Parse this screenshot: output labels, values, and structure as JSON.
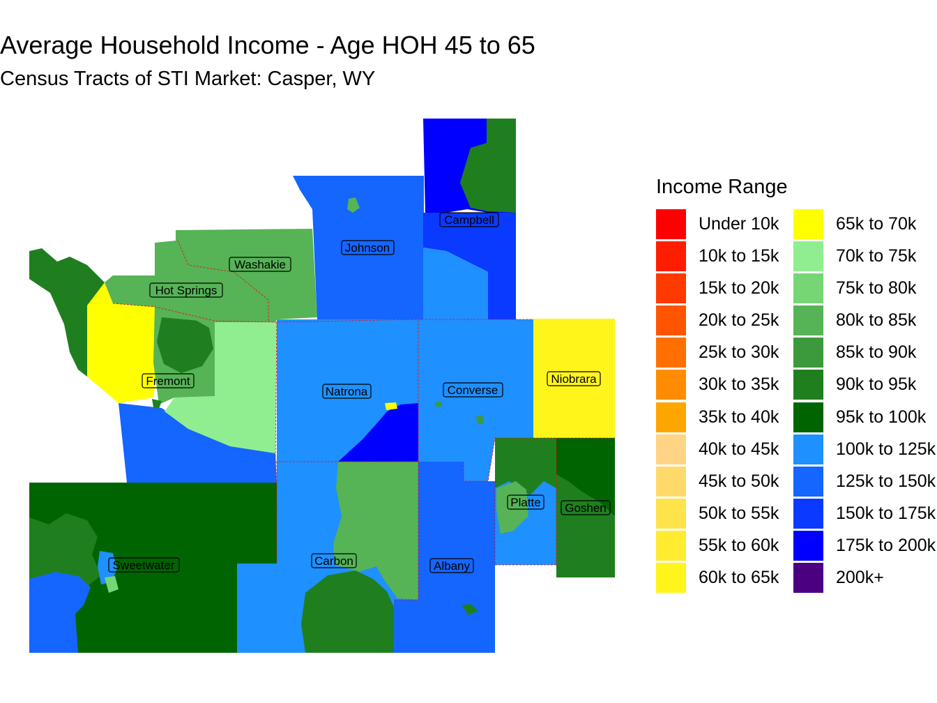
{
  "title": "Average Household Income - Age HOH 45 to 65",
  "subtitle": "Census Tracts of STI Market: Casper, WY",
  "legend": {
    "title": "Income Range",
    "items": [
      {
        "label": "Under 10k",
        "color": "#FF0000"
      },
      {
        "label": "10k to 15k",
        "color": "#FF1D00"
      },
      {
        "label": "15k to 20k",
        "color": "#FF3A00"
      },
      {
        "label": "20k to 25k",
        "color": "#FF5500"
      },
      {
        "label": "25k to 30k",
        "color": "#FF7000"
      },
      {
        "label": "30k to 35k",
        "color": "#FF8C00"
      },
      {
        "label": "35k to 40k",
        "color": "#FFA500"
      },
      {
        "label": "40k to 45k",
        "color": "#FFD484"
      },
      {
        "label": "45k to 50k",
        "color": "#FFDA6A"
      },
      {
        "label": "50k to 55k",
        "color": "#FFE34A"
      },
      {
        "label": "55k to 60k",
        "color": "#FFEC30"
      },
      {
        "label": "60k to 65k",
        "color": "#FFF51A"
      },
      {
        "label": "65k to 70k",
        "color": "#FFFF00"
      },
      {
        "label": "70k to 75k",
        "color": "#90EE90"
      },
      {
        "label": "75k to 80k",
        "color": "#76D676"
      },
      {
        "label": "80k to 85k",
        "color": "#56B356"
      },
      {
        "label": "85k to 90k",
        "color": "#3C9A3C"
      },
      {
        "label": "90k to 95k",
        "color": "#1F7F1F"
      },
      {
        "label": "95k to 100k",
        "color": "#006400"
      },
      {
        "label": "100k to 125k",
        "color": "#1E90FF"
      },
      {
        "label": "125k to 150k",
        "color": "#1565FF"
      },
      {
        "label": "150k to 175k",
        "color": "#0A3AFF"
      },
      {
        "label": "175k to 200k",
        "color": "#0000FF"
      },
      {
        "label": "200k+",
        "color": "#4B0082"
      }
    ]
  },
  "counties": [
    {
      "name": "Campbell"
    },
    {
      "name": "Johnson"
    },
    {
      "name": "Washakie"
    },
    {
      "name": "Hot Springs"
    },
    {
      "name": "Fremont"
    },
    {
      "name": "Natrona"
    },
    {
      "name": "Converse"
    },
    {
      "name": "Niobrara"
    },
    {
      "name": "Platte"
    },
    {
      "name": "Goshen"
    },
    {
      "name": "Sweetwater"
    },
    {
      "name": "Carbon"
    },
    {
      "name": "Albany"
    }
  ]
}
